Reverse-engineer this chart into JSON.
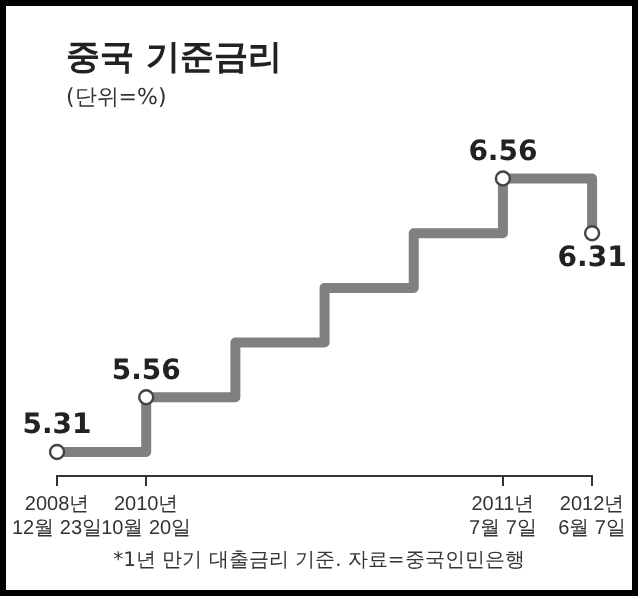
{
  "chart_data": {
    "type": "step",
    "title": "중국 기준금리",
    "subtitle": "(단위=%)",
    "categories": [
      "2008년\n12월 23일",
      "2010년\n10월 20일",
      null,
      null,
      null,
      "2011년\n7월 7일",
      "2012년\n6월 7일"
    ],
    "values": [
      5.31,
      5.56,
      5.81,
      6.06,
      6.31,
      6.56,
      6.31
    ],
    "value_labels": [
      "5.31",
      "5.56",
      null,
      null,
      null,
      "6.56",
      "6.31"
    ],
    "color": "#808080",
    "marker": "circle",
    "line_style": "solid",
    "grid": false,
    "legend": false,
    "tick_labels": "x",
    "annotations": [
      "*1년 만기 대출금리 기준. 자료=중국인민은행"
    ]
  }
}
